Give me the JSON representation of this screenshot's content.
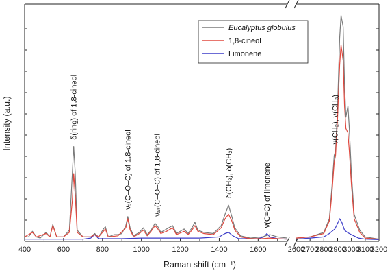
{
  "chart_data": {
    "type": "line",
    "title": "",
    "xlabel": "Raman shift (cm⁻¹)",
    "ylabel": "Intensity (a.u.)",
    "x_ticks_left": [
      "400",
      "600",
      "800",
      "1000",
      "1200",
      "1400",
      "1600"
    ],
    "x_ticks_right": [
      "2600",
      "2700",
      "2800",
      "2900",
      "3000",
      "3100",
      "3200"
    ],
    "xlim_left": [
      400,
      1750
    ],
    "xlim_right": [
      2600,
      3200
    ],
    "ylim": [
      0,
      1.05
    ],
    "grid": false,
    "legend_position": "top-right",
    "series": [
      {
        "name": "Eucalyptus globulus",
        "color": "#7a7a7a",
        "left_points": [
          [
            400,
            0.02
          ],
          [
            420,
            0.02
          ],
          [
            440,
            0.045
          ],
          [
            460,
            0.02
          ],
          [
            480,
            0.015
          ],
          [
            510,
            0.04
          ],
          [
            530,
            0.02
          ],
          [
            545,
            0.075
          ],
          [
            565,
            0.02
          ],
          [
            600,
            0.02
          ],
          [
            630,
            0.05
          ],
          [
            645,
            0.3
          ],
          [
            652,
            0.42
          ],
          [
            660,
            0.3
          ],
          [
            670,
            0.05
          ],
          [
            700,
            0.02
          ],
          [
            740,
            0.02
          ],
          [
            760,
            0.035
          ],
          [
            780,
            0.02
          ],
          [
            805,
            0.055
          ],
          [
            815,
            0.065
          ],
          [
            830,
            0.02
          ],
          [
            860,
            0.03
          ],
          [
            880,
            0.03
          ],
          [
            900,
            0.035
          ],
          [
            920,
            0.07
          ],
          [
            930,
            0.11
          ],
          [
            942,
            0.06
          ],
          [
            960,
            0.025
          ],
          [
            990,
            0.04
          ],
          [
            1010,
            0.06
          ],
          [
            1030,
            0.03
          ],
          [
            1050,
            0.05
          ],
          [
            1070,
            0.08
          ],
          [
            1085,
            0.065
          ],
          [
            1100,
            0.04
          ],
          [
            1130,
            0.055
          ],
          [
            1160,
            0.07
          ],
          [
            1180,
            0.035
          ],
          [
            1210,
            0.05
          ],
          [
            1220,
            0.055
          ],
          [
            1240,
            0.035
          ],
          [
            1260,
            0.06
          ],
          [
            1275,
            0.085
          ],
          [
            1290,
            0.05
          ],
          [
            1320,
            0.04
          ],
          [
            1370,
            0.035
          ],
          [
            1410,
            0.07
          ],
          [
            1430,
            0.12
          ],
          [
            1448,
            0.16
          ],
          [
            1465,
            0.11
          ],
          [
            1480,
            0.06
          ],
          [
            1510,
            0.025
          ],
          [
            1560,
            0.015
          ],
          [
            1620,
            0.02
          ],
          [
            1660,
            0.03
          ],
          [
            1700,
            0.02
          ],
          [
            1750,
            0.015
          ]
        ],
        "right_points": [
          [
            2600,
            0.015
          ],
          [
            2700,
            0.02
          ],
          [
            2800,
            0.04
          ],
          [
            2840,
            0.1
          ],
          [
            2860,
            0.25
          ],
          [
            2875,
            0.38
          ],
          [
            2885,
            0.4
          ],
          [
            2900,
            0.6
          ],
          [
            2915,
            0.9
          ],
          [
            2925,
            1.0
          ],
          [
            2940,
            0.95
          ],
          [
            2950,
            0.7
          ],
          [
            2960,
            0.55
          ],
          [
            2975,
            0.6
          ],
          [
            2985,
            0.5
          ],
          [
            3000,
            0.3
          ],
          [
            3020,
            0.12
          ],
          [
            3060,
            0.05
          ],
          [
            3100,
            0.02
          ],
          [
            3200,
            0.01
          ]
        ]
      },
      {
        "name": "1,8-cineol",
        "color": "#e0493f",
        "left_points": [
          [
            400,
            0.02
          ],
          [
            440,
            0.04
          ],
          [
            460,
            0.02
          ],
          [
            510,
            0.035
          ],
          [
            530,
            0.02
          ],
          [
            545,
            0.07
          ],
          [
            565,
            0.02
          ],
          [
            600,
            0.02
          ],
          [
            630,
            0.04
          ],
          [
            645,
            0.18
          ],
          [
            652,
            0.3
          ],
          [
            660,
            0.2
          ],
          [
            670,
            0.04
          ],
          [
            700,
            0.02
          ],
          [
            740,
            0.02
          ],
          [
            760,
            0.03
          ],
          [
            780,
            0.02
          ],
          [
            805,
            0.045
          ],
          [
            815,
            0.055
          ],
          [
            830,
            0.02
          ],
          [
            880,
            0.025
          ],
          [
            920,
            0.06
          ],
          [
            930,
            0.1
          ],
          [
            942,
            0.05
          ],
          [
            960,
            0.02
          ],
          [
            990,
            0.035
          ],
          [
            1010,
            0.05
          ],
          [
            1030,
            0.025
          ],
          [
            1050,
            0.045
          ],
          [
            1070,
            0.07
          ],
          [
            1085,
            0.055
          ],
          [
            1100,
            0.035
          ],
          [
            1130,
            0.045
          ],
          [
            1160,
            0.06
          ],
          [
            1180,
            0.03
          ],
          [
            1220,
            0.045
          ],
          [
            1240,
            0.03
          ],
          [
            1260,
            0.05
          ],
          [
            1275,
            0.07
          ],
          [
            1290,
            0.045
          ],
          [
            1320,
            0.035
          ],
          [
            1370,
            0.03
          ],
          [
            1410,
            0.06
          ],
          [
            1430,
            0.1
          ],
          [
            1448,
            0.12
          ],
          [
            1465,
            0.09
          ],
          [
            1480,
            0.05
          ],
          [
            1510,
            0.02
          ],
          [
            1560,
            0.012
          ],
          [
            1620,
            0.012
          ],
          [
            1660,
            0.015
          ],
          [
            1700,
            0.012
          ],
          [
            1750,
            0.01
          ]
        ],
        "right_points": [
          [
            2600,
            0.015
          ],
          [
            2700,
            0.02
          ],
          [
            2800,
            0.035
          ],
          [
            2840,
            0.09
          ],
          [
            2860,
            0.22
          ],
          [
            2875,
            0.35
          ],
          [
            2885,
            0.38
          ],
          [
            2900,
            0.55
          ],
          [
            2915,
            0.78
          ],
          [
            2925,
            0.87
          ],
          [
            2940,
            0.8
          ],
          [
            2950,
            0.6
          ],
          [
            2960,
            0.5
          ],
          [
            2975,
            0.48
          ],
          [
            2985,
            0.4
          ],
          [
            3000,
            0.25
          ],
          [
            3020,
            0.1
          ],
          [
            3060,
            0.04
          ],
          [
            3100,
            0.015
          ],
          [
            3200,
            0.01
          ]
        ]
      },
      {
        "name": "Limonene",
        "color": "#3c3cc8",
        "left_points": [
          [
            400,
            0.01
          ],
          [
            500,
            0.01
          ],
          [
            600,
            0.01
          ],
          [
            700,
            0.01
          ],
          [
            740,
            0.015
          ],
          [
            760,
            0.03
          ],
          [
            780,
            0.012
          ],
          [
            900,
            0.012
          ],
          [
            1000,
            0.015
          ],
          [
            1100,
            0.015
          ],
          [
            1200,
            0.015
          ],
          [
            1300,
            0.015
          ],
          [
            1400,
            0.02
          ],
          [
            1430,
            0.035
          ],
          [
            1448,
            0.04
          ],
          [
            1470,
            0.025
          ],
          [
            1500,
            0.012
          ],
          [
            1600,
            0.012
          ],
          [
            1630,
            0.02
          ],
          [
            1645,
            0.035
          ],
          [
            1660,
            0.02
          ],
          [
            1700,
            0.012
          ],
          [
            1750,
            0.01
          ]
        ],
        "right_points": [
          [
            2600,
            0.01
          ],
          [
            2700,
            0.015
          ],
          [
            2800,
            0.02
          ],
          [
            2840,
            0.035
          ],
          [
            2860,
            0.045
          ],
          [
            2880,
            0.055
          ],
          [
            2900,
            0.08
          ],
          [
            2915,
            0.1
          ],
          [
            2930,
            0.085
          ],
          [
            2950,
            0.05
          ],
          [
            2970,
            0.04
          ],
          [
            3000,
            0.03
          ],
          [
            3050,
            0.015
          ],
          [
            3100,
            0.01
          ],
          [
            3200,
            0.008
          ]
        ]
      }
    ],
    "annotations": [
      {
        "text": "δ(ring) of 1,8-cineol",
        "x": 652,
        "y": 0.45
      },
      {
        "text": "νₛ(C–O–C) of 1,8-cineol",
        "x": 930,
        "y": 0.14
      },
      {
        "text": "νₐₛ(C–O–C) of 1,8-cineol",
        "x": 1080,
        "y": 0.11
      },
      {
        "text": "δ(CH₃), δ(CH₂)",
        "x": 1448,
        "y": 0.19
      },
      {
        "text": "ν(C=C) of limonene",
        "x": 1645,
        "y": 0.06
      },
      {
        "text": "ν(CH₂), ν(CH₃)",
        "x": 2880,
        "y": 0.43
      }
    ]
  }
}
